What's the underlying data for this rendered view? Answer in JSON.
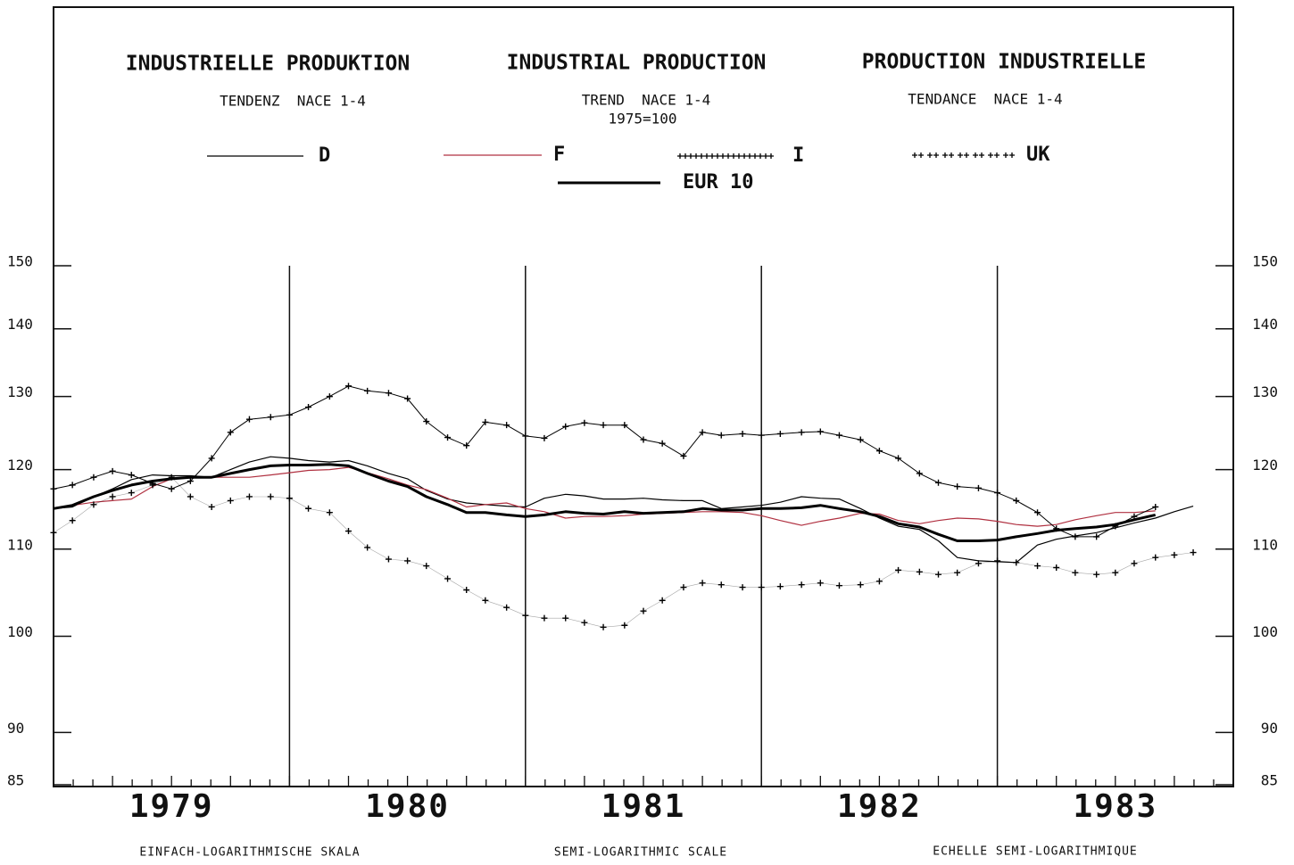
{
  "chart_data": {
    "type": "line",
    "titles": [
      "INDUSTRIELLE PRODUKTION",
      "INDUSTRIAL PRODUCTION",
      "PRODUCTION INDUSTRIELLE"
    ],
    "subtitles": [
      "TENDENZ  NACE 1-4",
      "TREND  NACE 1-4",
      "TENDANCE  NACE 1-4"
    ],
    "base_note": "1975=100",
    "footnotes": [
      "EINFACH-LOGARITHMISCHE SKALA",
      "SEMI-LOGARITHMIC SCALE",
      "ECHELLE SEMI-LOGARITHMIQUE"
    ],
    "log_scale": true,
    "ylim": [
      85,
      150
    ],
    "yticks": [
      85,
      90,
      100,
      110,
      120,
      130,
      140,
      150
    ],
    "xlim": [
      1979,
      1984
    ],
    "xticks": [
      {
        "value": 1979.5,
        "label": "1979"
      },
      {
        "value": 1980.5,
        "label": "1980"
      },
      {
        "value": 1981.5,
        "label": "1981"
      },
      {
        "value": 1982.5,
        "label": "1982"
      },
      {
        "value": 1983.5,
        "label": "1983"
      }
    ],
    "xgrid": [
      1980,
      1981,
      1982,
      1983
    ],
    "x": [
      1979.0,
      1979.08,
      1979.17,
      1979.25,
      1979.33,
      1979.42,
      1979.5,
      1979.58,
      1979.67,
      1979.75,
      1979.83,
      1979.92,
      1980.0,
      1980.08,
      1980.17,
      1980.25,
      1980.33,
      1980.42,
      1980.5,
      1980.58,
      1980.67,
      1980.75,
      1980.83,
      1980.92,
      1981.0,
      1981.08,
      1981.17,
      1981.25,
      1981.33,
      1981.42,
      1981.5,
      1981.58,
      1981.67,
      1981.75,
      1981.83,
      1981.92,
      1982.0,
      1982.08,
      1982.17,
      1982.25,
      1982.33,
      1982.42,
      1982.5,
      1982.58,
      1982.67,
      1982.75,
      1982.83,
      1982.92,
      1983.0,
      1983.08,
      1983.17,
      1983.25,
      1983.33,
      1983.42,
      1983.5,
      1983.58,
      1983.67,
      1983.75,
      1983.83
    ],
    "series": [
      {
        "name": "D",
        "color": "#000000",
        "style": "line",
        "width": 1.2,
        "values": [
          115,
          115.2,
          116.5,
          117.5,
          118.7,
          119.3,
          119.2,
          119.2,
          119,
          120,
          121,
          121.7,
          121.5,
          121.2,
          121,
          121.2,
          120.5,
          119.5,
          118.8,
          117.3,
          116.2,
          115.7,
          115.5,
          115.3,
          115.2,
          116.3,
          116.8,
          116.6,
          116.2,
          116.2,
          116.3,
          116.1,
          116,
          116,
          115,
          115.2,
          115.4,
          115.8,
          116.5,
          116.3,
          116.2,
          115,
          113.8,
          112.8,
          112.4,
          111,
          109,
          108.6,
          108.5,
          108.4,
          110.5,
          111.2,
          111.6,
          112,
          112.6,
          113.2,
          113.8,
          114.6,
          115.3
        ]
      },
      {
        "name": "F",
        "color": "#b03040",
        "style": "line",
        "width": 1.2,
        "values": [
          115,
          115.4,
          115.8,
          116,
          116.2,
          117.8,
          118.8,
          119,
          119,
          119,
          119,
          119.3,
          119.6,
          119.9,
          120,
          120.3,
          119.6,
          118.8,
          118,
          117.4,
          116.3,
          115.2,
          115.5,
          115.7,
          115,
          114.6,
          113.8,
          114,
          114,
          114.1,
          114.3,
          114.4,
          114.5,
          114.6,
          114.6,
          114.5,
          114.1,
          113.5,
          112.9,
          113.4,
          113.8,
          114.4,
          114.3,
          113.5,
          113.1,
          113.5,
          113.8,
          113.7,
          113.4,
          113,
          112.8,
          113,
          113.6,
          114.1,
          114.5,
          114.5,
          114.7,
          null,
          null
        ]
      },
      {
        "name": "I",
        "color": "#000000",
        "style": "dense-cross",
        "width": 1,
        "values": [
          117.5,
          118,
          119,
          119.8,
          119.3,
          118.2,
          117.5,
          118.5,
          121.5,
          125,
          126.8,
          127.1,
          127.4,
          128.5,
          130,
          131.5,
          130.8,
          130.5,
          129.7,
          126.5,
          124.3,
          123.2,
          126.4,
          126,
          124.5,
          124.2,
          125.8,
          126.3,
          126,
          126,
          124,
          123.5,
          121.8,
          125,
          124.6,
          124.8,
          124.6,
          124.8,
          125,
          125.1,
          124.6,
          124,
          122.5,
          121.5,
          119.5,
          118.3,
          117.8,
          117.6,
          117,
          116,
          114.5,
          112.5,
          111.5,
          111.5,
          112.8,
          114,
          115.2,
          null,
          null
        ]
      },
      {
        "name": "UK",
        "color": "#000000",
        "style": "sparse-cross",
        "width": 1,
        "values": [
          112,
          113.5,
          115.5,
          116.5,
          117,
          118,
          119,
          116.5,
          115.2,
          116,
          116.5,
          116.5,
          116.3,
          115,
          114.5,
          112.2,
          110.2,
          108.8,
          108.6,
          108,
          106.5,
          105.2,
          104,
          103.2,
          102.3,
          102,
          102,
          101.5,
          101,
          101.2,
          102.8,
          104,
          105.5,
          106,
          105.8,
          105.5,
          105.5,
          105.6,
          105.8,
          106,
          105.7,
          105.8,
          106.2,
          107.5,
          107.3,
          107,
          107.2,
          108.3,
          108.6,
          108.4,
          108,
          107.8,
          107.2,
          107,
          107.2,
          108.3,
          109,
          109.3,
          109.6
        ]
      },
      {
        "name": "EUR 10",
        "color": "#000000",
        "style": "line",
        "width": 3,
        "values": [
          115,
          115.4,
          116.5,
          117.3,
          118,
          118.5,
          118.8,
          119,
          119,
          119.5,
          120,
          120.5,
          120.6,
          120.6,
          120.7,
          120.5,
          119.5,
          118.5,
          117.8,
          116.5,
          115.5,
          114.5,
          114.5,
          114.2,
          114,
          114.2,
          114.6,
          114.4,
          114.3,
          114.6,
          114.4,
          114.5,
          114.6,
          115,
          114.8,
          114.8,
          115,
          115,
          115.1,
          115.4,
          115,
          114.6,
          114,
          113.1,
          112.7,
          111.8,
          111,
          111,
          111.1,
          111.5,
          111.9,
          112.3,
          112.5,
          112.7,
          113,
          113.6,
          114.2,
          null,
          null
        ]
      }
    ]
  }
}
